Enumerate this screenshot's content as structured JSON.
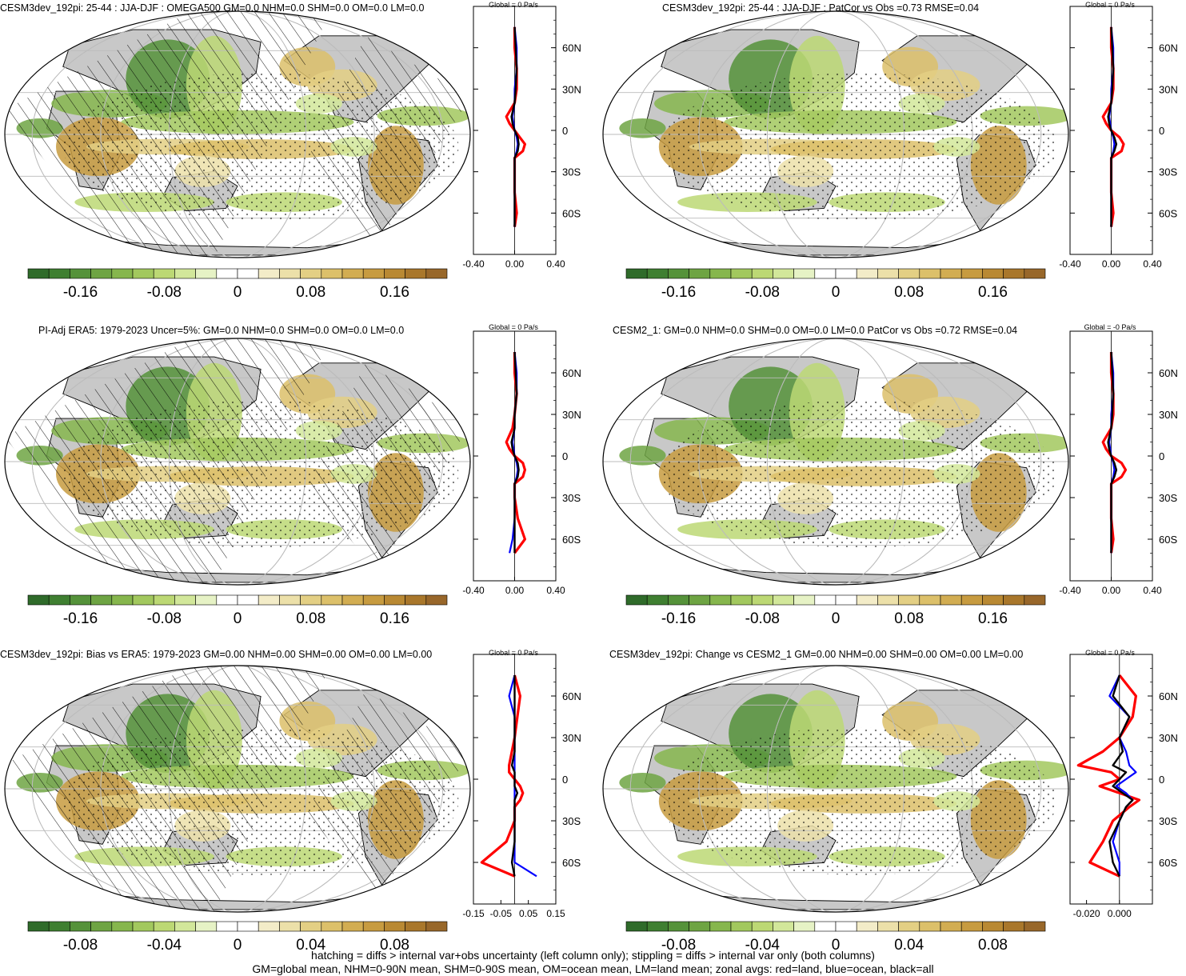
{
  "panels": [
    {
      "id": "p1",
      "title": "CESM3dev_192pi: 25-44 : JJA-DJF : OMEGA500 GM=0.0 NHM=0.0 SHM=0.0 OM=0.0 LM=0.0",
      "zonal_title": "Global = 0 Pa/s",
      "hatched": true,
      "colorbar_ticks": [
        "-0.16",
        "-0.08",
        "0",
        "0.08",
        "0.16"
      ],
      "zonal_xticks": [
        "-0.40",
        "0.00",
        "0.40"
      ]
    },
    {
      "id": "p2",
      "title": "CESM3dev_192pi: 25-44 : JJA-DJF : PatCor vs Obs =0.73 RMSE=0.04",
      "zonal_title": "Global = 0 Pa/s",
      "hatched": false,
      "colorbar_ticks": [
        "-0.16",
        "-0.08",
        "0",
        "0.08",
        "0.16"
      ],
      "zonal_xticks": [
        "-0.40",
        "0.00",
        "0.40"
      ]
    },
    {
      "id": "p3",
      "title": "PI-Adj ERA5: 1979-2023 Uncer=5%: GM=0.0 NHM=0.0 SHM=0.0 OM=0.0 LM=0.0",
      "zonal_title": "Global = 0 Pa/s",
      "hatched": true,
      "colorbar_ticks": [
        "-0.16",
        "-0.08",
        "0",
        "0.08",
        "0.16"
      ],
      "zonal_xticks": [
        "-0.40",
        "0.00",
        "0.40"
      ]
    },
    {
      "id": "p4",
      "title": "CESM2_1: GM=0.0 NHM=0.0 SHM=0.0 OM=0.0 LM=0.0 PatCor vs Obs =0.72 RMSE=0.04",
      "zonal_title": "Global = -0 Pa/s",
      "hatched": false,
      "colorbar_ticks": [
        "-0.16",
        "-0.08",
        "0",
        "0.08",
        "0.16"
      ],
      "zonal_xticks": [
        "-0.40",
        "0.00",
        "0.40"
      ]
    },
    {
      "id": "p5",
      "title": "CESM3dev_192pi: Bias vs ERA5: 1979-2023 GM=0.00 NHM=0.00 SHM=0.00 OM=0.00 LM=0.00",
      "zonal_title": "Global = 0 Pa/s",
      "hatched": true,
      "colorbar_ticks": [
        "-0.08",
        "-0.04",
        "0",
        "0.04",
        "0.08"
      ],
      "zonal_xticks": [
        "-0.15",
        "-0.05",
        "0.05",
        "0.15"
      ]
    },
    {
      "id": "p6",
      "title": "CESM3dev_192pi: Change vs CESM2_1 GM=0.00 NHM=0.00 SHM=0.00 OM=0.00 LM=0.00",
      "zonal_title": "Global = 0 Pa/s",
      "hatched": false,
      "colorbar_ticks": [
        "-0.08",
        "-0.04",
        "0",
        "0.04",
        "0.08"
      ],
      "zonal_xticks": [
        "-0.020",
        "0.000"
      ]
    }
  ],
  "lat_labels": [
    "60N",
    "30N",
    "0",
    "30S",
    "60S"
  ],
  "colorbar_colors": [
    "#2f6b2a",
    "#3f7f31",
    "#55923a",
    "#6ea443",
    "#86b64d",
    "#a2c85e",
    "#bcd874",
    "#d2e79a",
    "#e6f2c5",
    "#ffffff",
    "#ffffff",
    "#f3ecc8",
    "#ece0a9",
    "#e3cf84",
    "#dcc06a",
    "#d2ad52",
    "#c79b40",
    "#b98933",
    "#a9772b",
    "#98672a"
  ],
  "series_colors": {
    "land": "#ff0000",
    "ocean": "#0000ff",
    "all": "#000000"
  },
  "footer": [
    "hatching = diffs > internal var+obs uncertainty (left column only); stippling = diffs > internal var only (both columns)",
    "GM=global mean, NHM=0-90N mean, SHM=0-90S mean, OM=ocean mean, LM=land mean; zonal avgs: red=land, blue=ocean, black=all"
  ],
  "chart_data": {
    "type": "map",
    "variable": "OMEGA500",
    "legend_series": [
      "land",
      "ocean",
      "all"
    ],
    "colorbar_range_rows_1_2": [
      -0.2,
      0.2
    ],
    "colorbar_range_row_3": [
      -0.1,
      0.1
    ],
    "zonal_profiles": {
      "lat": [
        75,
        60,
        45,
        30,
        20,
        10,
        5,
        0,
        -5,
        -10,
        -15,
        -20,
        -30,
        -45,
        -60,
        -70
      ],
      "p1": {
        "land": [
          0.0,
          0.0,
          0.02,
          0.02,
          0.0,
          -0.08,
          -0.05,
          0.0,
          0.05,
          0.1,
          0.08,
          0.0,
          0.0,
          0.0,
          0.02,
          0.0
        ],
        "ocean": [
          0.0,
          0.02,
          0.02,
          0.0,
          0.0,
          -0.02,
          -0.01,
          0.0,
          0.02,
          0.03,
          0.02,
          0.0,
          0.0,
          0.0,
          0.0,
          0.0
        ],
        "all": [
          0.0,
          0.01,
          0.02,
          0.01,
          0.0,
          -0.03,
          -0.02,
          0.0,
          0.03,
          0.04,
          0.03,
          0.0,
          0.0,
          0.0,
          0.0,
          0.0
        ]
      },
      "p2": {
        "land": [
          0.0,
          0.0,
          0.02,
          0.02,
          0.0,
          -0.08,
          -0.05,
          0.0,
          0.08,
          0.12,
          0.1,
          0.0,
          0.0,
          0.0,
          0.02,
          0.0
        ],
        "ocean": [
          0.0,
          0.02,
          0.02,
          0.0,
          0.0,
          -0.02,
          -0.01,
          0.0,
          0.02,
          0.03,
          0.02,
          0.0,
          0.0,
          0.0,
          0.0,
          0.0
        ],
        "all": [
          0.0,
          0.01,
          0.02,
          0.01,
          0.0,
          -0.03,
          -0.02,
          0.0,
          0.03,
          0.05,
          0.03,
          0.0,
          0.0,
          0.0,
          0.0,
          0.0
        ]
      },
      "p3": {
        "land": [
          0.0,
          0.0,
          0.02,
          0.0,
          -0.02,
          -0.08,
          -0.05,
          0.0,
          0.08,
          0.1,
          0.08,
          0.0,
          0.0,
          0.03,
          0.1,
          0.0
        ],
        "ocean": [
          0.0,
          0.02,
          0.02,
          0.0,
          0.0,
          -0.02,
          -0.01,
          0.0,
          0.02,
          0.03,
          0.02,
          0.0,
          0.0,
          0.0,
          -0.02,
          -0.05
        ],
        "all": [
          0.0,
          0.01,
          0.02,
          0.0,
          0.0,
          -0.03,
          -0.02,
          0.0,
          0.03,
          0.04,
          0.03,
          0.0,
          0.0,
          0.0,
          0.0,
          0.0
        ]
      },
      "p4": {
        "land": [
          0.0,
          0.0,
          0.02,
          0.02,
          0.0,
          -0.08,
          -0.05,
          0.0,
          0.1,
          0.14,
          0.1,
          0.0,
          0.0,
          0.0,
          0.02,
          0.0
        ],
        "ocean": [
          0.0,
          0.02,
          0.02,
          0.0,
          0.0,
          -0.02,
          -0.01,
          0.0,
          0.02,
          0.03,
          0.02,
          0.0,
          0.0,
          0.0,
          0.0,
          0.0
        ],
        "all": [
          0.0,
          0.01,
          0.02,
          0.01,
          0.0,
          -0.03,
          -0.02,
          0.0,
          0.03,
          0.05,
          0.03,
          0.0,
          0.0,
          0.0,
          0.0,
          0.0
        ]
      },
      "p5": {
        "land": [
          0.0,
          0.02,
          0.01,
          0.0,
          -0.01,
          -0.02,
          -0.02,
          0.0,
          0.02,
          0.03,
          0.02,
          0.0,
          0.0,
          -0.03,
          -0.12,
          0.0
        ],
        "ocean": [
          0.0,
          -0.02,
          0.0,
          0.0,
          0.0,
          0.0,
          0.0,
          0.0,
          0.0,
          0.0,
          0.0,
          0.0,
          0.0,
          0.0,
          0.0,
          0.08
        ],
        "all": [
          0.0,
          0.0,
          0.0,
          0.0,
          0.0,
          -0.01,
          0.0,
          0.0,
          0.0,
          0.01,
          0.0,
          0.0,
          0.0,
          0.0,
          -0.01,
          0.0
        ]
      },
      "p6": {
        "land": [
          0.0,
          0.01,
          0.008,
          0.0,
          -0.01,
          -0.025,
          -0.005,
          0.0,
          -0.012,
          0.0,
          0.012,
          0.006,
          -0.004,
          -0.01,
          -0.018,
          0.0
        ],
        "ocean": [
          0.0,
          -0.006,
          0.006,
          0.0,
          0.004,
          0.006,
          0.01,
          0.004,
          -0.002,
          0.004,
          0.008,
          0.004,
          0.0,
          -0.004,
          0.0,
          0.0
        ],
        "all": [
          0.0,
          -0.004,
          0.006,
          0.0,
          0.002,
          -0.004,
          0.004,
          0.0,
          -0.004,
          0.002,
          0.008,
          0.004,
          0.0,
          -0.006,
          -0.004,
          0.0
        ]
      }
    }
  }
}
